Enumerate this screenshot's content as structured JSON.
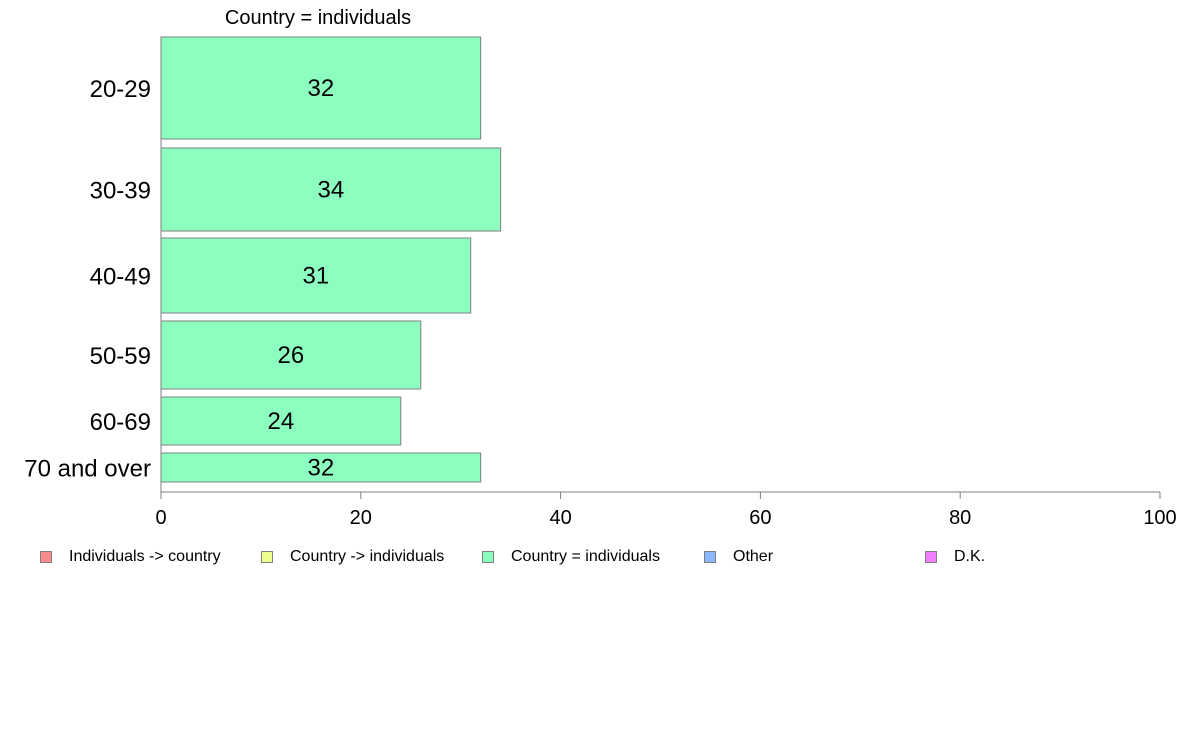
{
  "chart_data": {
    "type": "bar",
    "orientation": "horizontal",
    "title": "Country = individuals",
    "categories": [
      "20-29",
      "30-39",
      "40-49",
      "50-59",
      "60-69",
      "70 and over"
    ],
    "values": [
      32,
      34,
      31,
      26,
      24,
      32
    ],
    "bar_color": "#8cffc0",
    "xlim": [
      0,
      100
    ],
    "xticks": [
      0,
      20,
      40,
      60,
      80,
      100
    ],
    "grid": false,
    "legend_position": "bottom",
    "legend": [
      {
        "label": "Individuals -> country",
        "color": "#ff8c8c"
      },
      {
        "label": "Country -> individuals",
        "color": "#eeff8c"
      },
      {
        "label": "Country = individuals",
        "color": "#8cffc0"
      },
      {
        "label": "Other",
        "color": "#8cb8ff"
      },
      {
        "label": "D.K.",
        "color": "#f080ff"
      }
    ]
  }
}
